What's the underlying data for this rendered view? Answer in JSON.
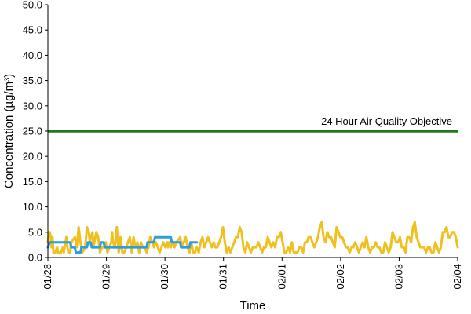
{
  "chart_data": {
    "type": "line",
    "xlabel": "Time",
    "ylabel": "Concentration (µg/m³)",
    "ylim": [
      0,
      50
    ],
    "yticks": [
      "0.0",
      "5.0",
      "10.0",
      "15.0",
      "20.0",
      "25.0",
      "30.0",
      "35.0",
      "40.0",
      "45.0",
      "50.0"
    ],
    "x_tick_labels": [
      "01/28",
      "01/29",
      "01/30",
      "01/31",
      "02/01",
      "02/02",
      "02/03",
      "02/04"
    ],
    "grid": false,
    "threshold": {
      "label": "24 Hour Air Quality Objective",
      "value": 25,
      "color": "#1f7a1f"
    },
    "series": [
      {
        "color": "#f0c020",
        "points": [
          [
            0.0,
            3
          ],
          [
            0.05,
            5
          ],
          [
            0.1,
            5
          ],
          [
            0.15,
            4
          ],
          [
            0.2,
            2
          ],
          [
            0.25,
            4
          ],
          [
            0.3,
            1
          ],
          [
            0.4,
            1
          ],
          [
            0.5,
            2
          ],
          [
            0.55,
            1
          ],
          [
            0.7,
            1
          ],
          [
            0.8,
            2
          ],
          [
            0.85,
            1
          ],
          [
            0.95,
            3
          ],
          [
            1.0,
            4
          ],
          [
            1.05,
            2
          ],
          [
            1.1,
            1
          ],
          [
            1.2,
            1
          ],
          [
            1.25,
            3
          ],
          [
            1.35,
            3.5
          ],
          [
            1.45,
            4
          ],
          [
            1.55,
            2
          ],
          [
            1.65,
            6
          ],
          [
            1.75,
            3
          ],
          [
            1.85,
            1
          ],
          [
            2.0,
            2
          ],
          [
            2.1,
            6
          ],
          [
            2.2,
            5
          ],
          [
            2.25,
            3
          ],
          [
            2.3,
            4
          ],
          [
            2.4,
            5
          ],
          [
            2.45,
            2
          ],
          [
            2.5,
            3
          ],
          [
            2.6,
            5
          ],
          [
            2.7,
            4
          ],
          [
            2.8,
            1
          ],
          [
            2.9,
            2
          ],
          [
            3.0,
            2
          ],
          [
            3.1,
            3
          ],
          [
            3.2,
            1
          ],
          [
            3.3,
            2
          ],
          [
            3.4,
            3
          ],
          [
            3.45,
            5
          ],
          [
            3.5,
            3
          ],
          [
            3.6,
            2
          ],
          [
            3.7,
            6
          ],
          [
            3.8,
            1
          ],
          [
            3.85,
            2
          ],
          [
            3.9,
            4
          ],
          [
            4.0,
            1
          ],
          [
            4.1,
            1
          ],
          [
            4.2,
            2
          ],
          [
            4.3,
            3
          ],
          [
            4.4,
            4
          ],
          [
            4.5,
            1
          ],
          [
            4.6,
            4
          ],
          [
            4.7,
            2
          ],
          [
            4.8,
            3
          ],
          [
            4.9,
            1
          ],
          [
            5.0,
            3
          ],
          [
            5.1,
            2
          ],
          [
            5.2,
            2
          ],
          [
            5.3,
            1
          ],
          [
            5.4,
            2
          ],
          [
            5.5,
            4
          ],
          [
            5.6,
            3
          ],
          [
            5.7,
            2
          ],
          [
            5.8,
            3
          ],
          [
            5.9,
            2
          ],
          [
            6.0,
            1
          ],
          [
            6.1,
            2
          ],
          [
            6.2,
            3
          ],
          [
            6.3,
            2
          ],
          [
            6.4,
            3
          ],
          [
            6.45,
            2
          ],
          [
            6.5,
            3
          ],
          [
            6.6,
            2
          ],
          [
            6.7,
            3
          ],
          [
            6.8,
            2
          ],
          [
            6.9,
            3
          ],
          [
            7.0,
            3.5
          ],
          [
            7.1,
            4
          ],
          [
            7.2,
            2
          ],
          [
            7.25,
            3
          ],
          [
            7.3,
            3
          ],
          [
            7.4,
            4
          ],
          [
            7.5,
            2
          ],
          [
            7.6,
            1
          ],
          [
            7.7,
            3
          ],
          [
            7.8,
            1
          ],
          [
            7.9,
            1
          ],
          [
            8.0,
            2
          ],
          [
            8.1,
            1
          ],
          [
            8.2,
            3
          ],
          [
            8.3,
            4
          ],
          [
            8.4,
            2
          ],
          [
            8.5,
            3
          ],
          [
            8.6,
            4
          ],
          [
            8.7,
            3
          ],
          [
            8.8,
            2
          ],
          [
            8.9,
            3
          ],
          [
            9.0,
            2
          ],
          [
            9.1,
            2
          ],
          [
            9.2,
            3
          ],
          [
            9.3,
            4
          ],
          [
            9.4,
            6
          ],
          [
            9.5,
            3
          ],
          [
            9.6,
            1
          ],
          [
            9.7,
            2
          ],
          [
            9.8,
            1
          ],
          [
            9.9,
            2
          ],
          [
            10.0,
            3
          ],
          [
            10.1,
            4
          ],
          [
            10.2,
            4
          ],
          [
            10.3,
            6
          ],
          [
            10.4,
            5
          ],
          [
            10.5,
            2
          ],
          [
            10.6,
            1
          ],
          [
            10.7,
            3
          ],
          [
            10.8,
            2
          ],
          [
            10.9,
            1
          ],
          [
            11.0,
            2
          ],
          [
            11.1,
            2
          ],
          [
            11.2,
            2
          ],
          [
            11.3,
            3
          ],
          [
            11.4,
            2
          ],
          [
            11.5,
            1
          ],
          [
            11.6,
            2
          ],
          [
            11.7,
            2
          ],
          [
            11.8,
            4
          ],
          [
            11.9,
            3
          ],
          [
            12.0,
            2
          ],
          [
            12.1,
            3
          ],
          [
            12.2,
            2
          ],
          [
            12.3,
            4
          ],
          [
            12.4,
            4
          ],
          [
            12.5,
            5
          ],
          [
            12.6,
            3
          ],
          [
            12.7,
            1
          ],
          [
            12.8,
            1
          ],
          [
            12.9,
            2
          ],
          [
            13.0,
            1
          ],
          [
            13.1,
            3
          ],
          [
            13.2,
            1
          ],
          [
            13.3,
            1
          ],
          [
            13.4,
            1
          ],
          [
            13.5,
            2
          ],
          [
            13.6,
            2
          ],
          [
            13.7,
            1
          ],
          [
            13.8,
            3
          ],
          [
            13.9,
            3
          ],
          [
            14.0,
            4
          ],
          [
            14.1,
            4
          ],
          [
            14.2,
            3
          ],
          [
            14.3,
            2
          ],
          [
            14.4,
            3
          ],
          [
            14.5,
            4
          ],
          [
            14.6,
            6
          ],
          [
            14.7,
            7
          ],
          [
            14.8,
            4
          ],
          [
            14.9,
            3
          ],
          [
            15.0,
            5
          ],
          [
            15.1,
            4
          ],
          [
            15.2,
            4
          ],
          [
            15.3,
            3
          ],
          [
            15.4,
            2
          ],
          [
            15.5,
            6
          ],
          [
            15.6,
            5
          ],
          [
            15.7,
            4
          ],
          [
            15.8,
            4
          ],
          [
            15.9,
            3
          ],
          [
            16.0,
            2
          ],
          [
            16.1,
            2
          ],
          [
            16.2,
            1
          ],
          [
            16.3,
            2
          ],
          [
            16.4,
            2
          ],
          [
            16.5,
            3
          ],
          [
            16.6,
            2
          ],
          [
            16.7,
            1
          ],
          [
            16.8,
            2
          ],
          [
            16.9,
            3
          ],
          [
            17.0,
            2
          ],
          [
            17.1,
            4
          ],
          [
            17.2,
            2
          ],
          [
            17.3,
            1
          ],
          [
            17.4,
            2
          ],
          [
            17.5,
            2
          ],
          [
            17.6,
            3
          ],
          [
            17.7,
            2
          ],
          [
            17.8,
            2
          ],
          [
            17.9,
            1
          ],
          [
            18.0,
            1
          ],
          [
            18.1,
            3
          ],
          [
            18.2,
            2
          ],
          [
            18.3,
            1
          ],
          [
            18.4,
            2
          ],
          [
            18.5,
            5
          ],
          [
            18.6,
            4
          ],
          [
            18.7,
            3
          ],
          [
            18.8,
            3
          ],
          [
            18.9,
            4
          ],
          [
            19.0,
            2
          ],
          [
            19.1,
            2
          ],
          [
            19.2,
            1
          ],
          [
            19.3,
            4
          ],
          [
            19.4,
            4
          ],
          [
            19.5,
            3
          ],
          [
            19.6,
            6
          ],
          [
            19.7,
            7
          ],
          [
            19.8,
            4
          ],
          [
            19.9,
            3
          ],
          [
            20.0,
            2
          ],
          [
            20.1,
            2
          ],
          [
            20.2,
            2
          ],
          [
            20.3,
            1
          ],
          [
            20.4,
            2
          ],
          [
            20.5,
            2
          ],
          [
            20.6,
            1
          ],
          [
            20.7,
            1
          ],
          [
            20.8,
            3
          ],
          [
            20.9,
            2
          ],
          [
            21.0,
            1
          ],
          [
            21.1,
            2
          ],
          [
            21.2,
            5
          ],
          [
            21.3,
            5
          ],
          [
            21.4,
            6
          ],
          [
            21.5,
            4
          ],
          [
            21.6,
            4
          ],
          [
            21.7,
            5
          ],
          [
            21.8,
            5
          ],
          [
            21.9,
            4
          ],
          [
            22.0,
            2
          ]
        ]
      },
      {
        "color": "#2a9ee0",
        "points": [
          [
            0.0,
            2
          ],
          [
            0.1,
            3
          ],
          [
            1.2,
            3
          ],
          [
            1.25,
            2
          ],
          [
            1.45,
            2
          ],
          [
            1.5,
            1
          ],
          [
            1.75,
            1
          ],
          [
            1.8,
            2
          ],
          [
            2.1,
            2
          ],
          [
            2.15,
            3
          ],
          [
            2.3,
            3
          ],
          [
            2.35,
            2
          ],
          [
            2.8,
            2
          ],
          [
            2.85,
            3
          ],
          [
            3.0,
            3
          ],
          [
            3.05,
            2
          ],
          [
            3.8,
            2
          ],
          [
            3.85,
            2
          ],
          [
            4.6,
            2
          ],
          [
            4.65,
            2
          ],
          [
            5.3,
            2
          ],
          [
            5.35,
            3
          ],
          [
            5.7,
            3
          ],
          [
            5.75,
            4
          ],
          [
            6.6,
            4
          ],
          [
            6.65,
            3
          ],
          [
            7.1,
            3
          ],
          [
            7.15,
            2
          ],
          [
            7.6,
            2
          ],
          [
            7.65,
            3
          ],
          [
            8.0,
            3
          ]
        ]
      }
    ]
  }
}
